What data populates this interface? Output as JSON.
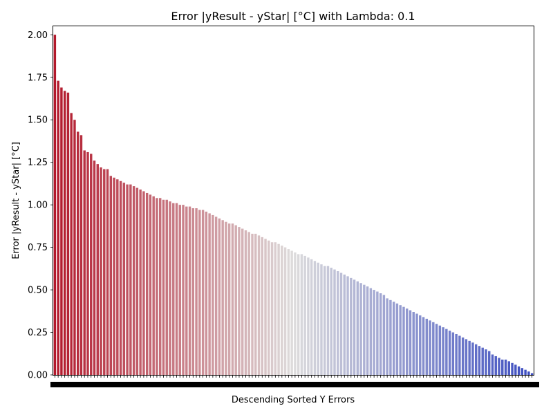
{
  "chart_data": {
    "type": "bar",
    "title": "Error |yResult - yStar| [°C] with Lambda: 0.1",
    "xlabel": "Descending Sorted Y Errors",
    "ylabel": "Error |yResult - yStar| [°C]",
    "ylim": [
      0,
      2.05
    ],
    "yticks": [
      "0.00",
      "0.25",
      "0.50",
      "0.75",
      "1.00",
      "1.25",
      "1.50",
      "1.75",
      "2.00"
    ],
    "x_tick_labels_note": "overlapping integer index labels (illegible)",
    "sorted": "descending",
    "colormap": "coolwarm_r",
    "color_start": "#b2182b",
    "color_mid": "#dddcdc",
    "color_end": "#3b4cc0",
    "grid": false,
    "legend": "none",
    "values": [
      2.0,
      1.73,
      1.69,
      1.67,
      1.66,
      1.54,
      1.5,
      1.43,
      1.41,
      1.32,
      1.31,
      1.3,
      1.26,
      1.24,
      1.22,
      1.21,
      1.21,
      1.17,
      1.16,
      1.15,
      1.14,
      1.13,
      1.12,
      1.12,
      1.11,
      1.1,
      1.09,
      1.08,
      1.07,
      1.06,
      1.05,
      1.04,
      1.04,
      1.03,
      1.03,
      1.02,
      1.01,
      1.01,
      1.0,
      1.0,
      0.99,
      0.99,
      0.98,
      0.98,
      0.97,
      0.97,
      0.96,
      0.95,
      0.94,
      0.93,
      0.92,
      0.91,
      0.9,
      0.89,
      0.89,
      0.88,
      0.87,
      0.86,
      0.85,
      0.84,
      0.83,
      0.83,
      0.82,
      0.81,
      0.8,
      0.79,
      0.78,
      0.78,
      0.77,
      0.76,
      0.75,
      0.74,
      0.73,
      0.72,
      0.71,
      0.71,
      0.7,
      0.69,
      0.68,
      0.67,
      0.66,
      0.65,
      0.64,
      0.64,
      0.63,
      0.62,
      0.61,
      0.6,
      0.59,
      0.58,
      0.57,
      0.56,
      0.55,
      0.54,
      0.53,
      0.52,
      0.51,
      0.5,
      0.49,
      0.48,
      0.47,
      0.45,
      0.44,
      0.43,
      0.42,
      0.41,
      0.4,
      0.39,
      0.38,
      0.37,
      0.36,
      0.35,
      0.34,
      0.33,
      0.32,
      0.31,
      0.3,
      0.29,
      0.28,
      0.27,
      0.26,
      0.25,
      0.24,
      0.23,
      0.22,
      0.21,
      0.2,
      0.19,
      0.18,
      0.17,
      0.16,
      0.15,
      0.14,
      0.12,
      0.11,
      0.1,
      0.09,
      0.09,
      0.08,
      0.07,
      0.06,
      0.05,
      0.04,
      0.03,
      0.02,
      0.01
    ]
  }
}
